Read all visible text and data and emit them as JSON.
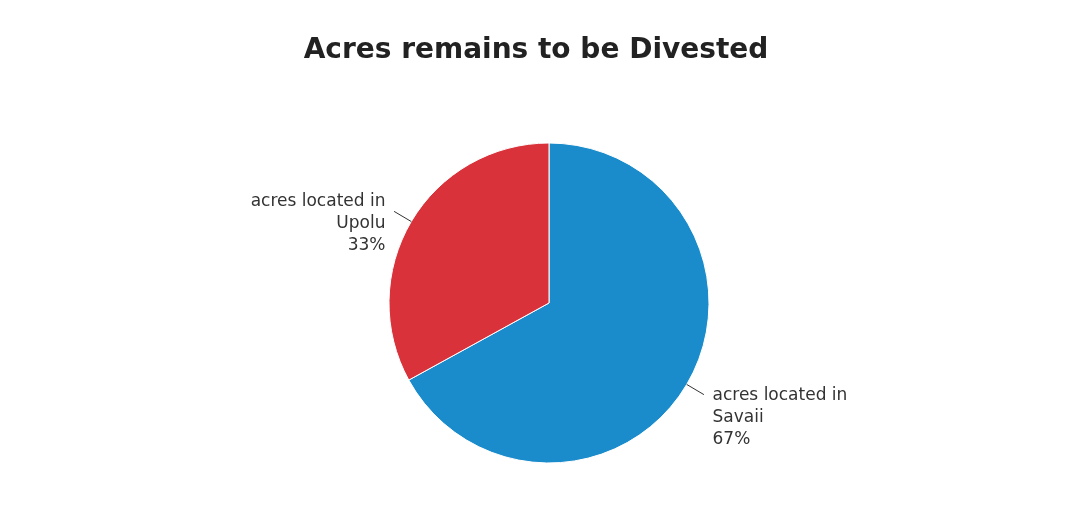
{
  "chart_data": {
    "type": "pie",
    "title": "Acres remains to be Divested",
    "categories": [
      "acres located in Savaii",
      "acres located in Upolu"
    ],
    "values": [
      67,
      33
    ],
    "value_labels": [
      "67%",
      "33%"
    ],
    "colors": [
      "#1a8ccc",
      "#d9323a"
    ],
    "legend": false
  }
}
